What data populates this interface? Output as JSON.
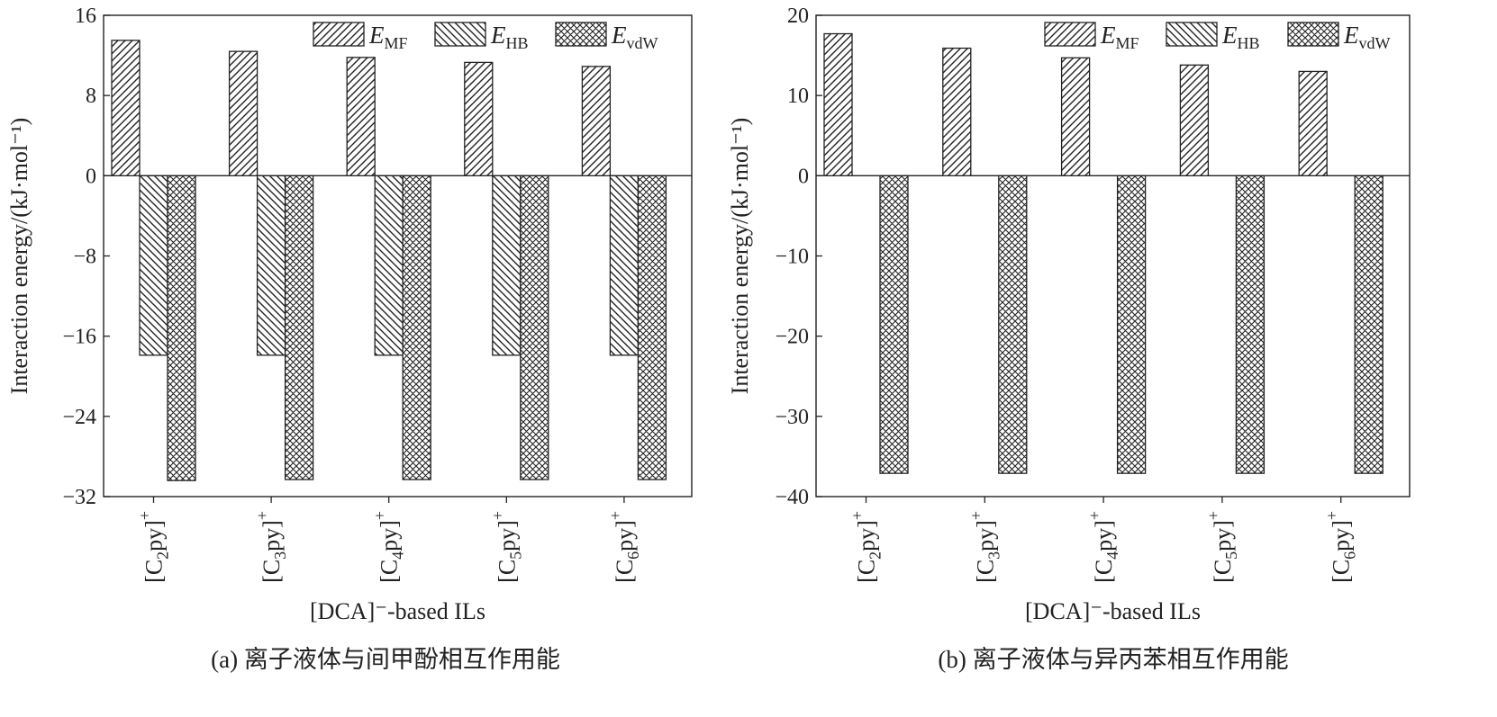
{
  "chart_data": [
    {
      "type": "bar",
      "panel_caption": "(a) 离子液体与间甲酚相互作用能",
      "ylabel": "Interaction energy/(kJ·mol⁻¹)",
      "xlabel": "[DCA]⁻-based ILs",
      "categories": [
        {
          "bracket": "[C",
          "sub": "2",
          "tail": "py]",
          "sup": "+"
        },
        {
          "bracket": "[C",
          "sub": "3",
          "tail": "py]",
          "sup": "+"
        },
        {
          "bracket": "[C",
          "sub": "4",
          "tail": "py]",
          "sup": "+"
        },
        {
          "bracket": "[C",
          "sub": "5",
          "tail": "py]",
          "sup": "+"
        },
        {
          "bracket": "[C",
          "sub": "6",
          "tail": "py]",
          "sup": "+"
        }
      ],
      "ylim": [
        -32,
        16
      ],
      "yticks": [
        16,
        8,
        0,
        -8,
        -16,
        -24,
        -32
      ],
      "ytick_labels": [
        "16",
        "8",
        "0",
        "−8",
        "−16",
        "−24",
        "−32"
      ],
      "series": [
        {
          "name": "E_MF",
          "label_main": "E",
          "label_sub": "MF",
          "pattern": "fwd",
          "values": [
            13.5,
            12.4,
            11.8,
            11.3,
            10.9
          ]
        },
        {
          "name": "E_HB",
          "label_main": "E",
          "label_sub": "HB",
          "pattern": "back",
          "values": [
            -17.9,
            -17.9,
            -17.9,
            -17.9,
            -17.9
          ]
        },
        {
          "name": "E_vdW",
          "label_main": "E",
          "label_sub": "vdW",
          "pattern": "cross",
          "values": [
            -30.4,
            -30.3,
            -30.3,
            -30.3,
            -30.3
          ]
        }
      ],
      "legend_position": "top-right",
      "grid": false
    },
    {
      "type": "bar",
      "panel_caption": "(b) 离子液体与异丙苯相互作用能",
      "ylabel": "Interaction energy/(kJ·mol⁻¹)",
      "xlabel": "[DCA]⁻-based ILs",
      "categories": [
        {
          "bracket": "[C",
          "sub": "2",
          "tail": "py]",
          "sup": "+"
        },
        {
          "bracket": "[C",
          "sub": "3",
          "tail": "py]",
          "sup": "+"
        },
        {
          "bracket": "[C",
          "sub": "4",
          "tail": "py]",
          "sup": "+"
        },
        {
          "bracket": "[C",
          "sub": "5",
          "tail": "py]",
          "sup": "+"
        },
        {
          "bracket": "[C",
          "sub": "6",
          "tail": "py]",
          "sup": "+"
        }
      ],
      "ylim": [
        -40,
        20
      ],
      "yticks": [
        20,
        10,
        0,
        -10,
        -20,
        -30,
        -40
      ],
      "ytick_labels": [
        "20",
        "10",
        "0",
        "−10",
        "−20",
        "−30",
        "−40"
      ],
      "series": [
        {
          "name": "E_MF",
          "label_main": "E",
          "label_sub": "MF",
          "pattern": "fwd",
          "values": [
            17.7,
            15.9,
            14.7,
            13.8,
            13.0
          ]
        },
        {
          "name": "E_HB",
          "label_main": "E",
          "label_sub": "HB",
          "pattern": "back",
          "values": [
            0,
            0,
            0,
            0,
            0
          ]
        },
        {
          "name": "E_vdW",
          "label_main": "E",
          "label_sub": "vdW",
          "pattern": "cross",
          "values": [
            -37.1,
            -37.1,
            -37.1,
            -37.1,
            -37.1
          ]
        }
      ],
      "legend_position": "top-right",
      "grid": false
    }
  ]
}
